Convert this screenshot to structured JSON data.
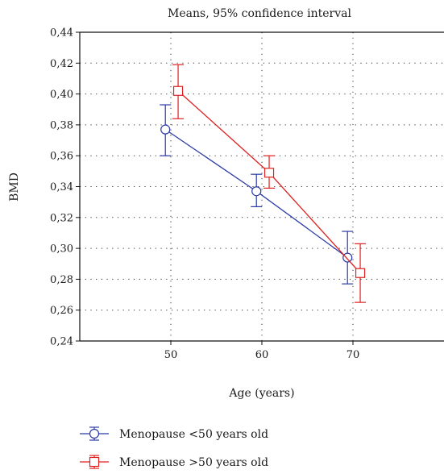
{
  "chart_data": {
    "type": "line",
    "title": "Means, 95% confidence interval",
    "xlabel": "Age (years)",
    "ylabel": "BMD",
    "xlim": [
      40,
      80
    ],
    "ylim": [
      0.24,
      0.44
    ],
    "x_ticks": [
      50,
      60,
      70
    ],
    "x_tick_labels": [
      "50",
      "60",
      "70"
    ],
    "y_ticks": [
      0.24,
      0.26,
      0.28,
      0.3,
      0.32,
      0.34,
      0.36,
      0.38,
      0.4,
      0.42,
      0.44
    ],
    "y_tick_labels": [
      "0,24",
      "0,26",
      "0,28",
      "0,30",
      "0,32",
      "0,34",
      "0,36",
      "0,38",
      "0,40",
      "0,42",
      "0,44"
    ],
    "grid": true,
    "legend_position": "bottom-left",
    "series": [
      {
        "name": "Menopause <50 years old",
        "color": "#2b3aa6",
        "marker": "circle",
        "points": [
          {
            "x": 49.4,
            "y": 0.377,
            "lower": 0.36,
            "upper": 0.393
          },
          {
            "x": 59.4,
            "y": 0.337,
            "lower": 0.327,
            "upper": 0.348
          },
          {
            "x": 69.4,
            "y": 0.294,
            "lower": 0.277,
            "upper": 0.311
          }
        ]
      },
      {
        "name": "Menopause >50 years old",
        "color": "#e02020",
        "marker": "square",
        "points": [
          {
            "x": 50.8,
            "y": 0.402,
            "lower": 0.384,
            "upper": 0.419
          },
          {
            "x": 60.8,
            "y": 0.349,
            "lower": 0.339,
            "upper": 0.36
          },
          {
            "x": 70.8,
            "y": 0.284,
            "lower": 0.265,
            "upper": 0.303
          }
        ]
      }
    ]
  }
}
